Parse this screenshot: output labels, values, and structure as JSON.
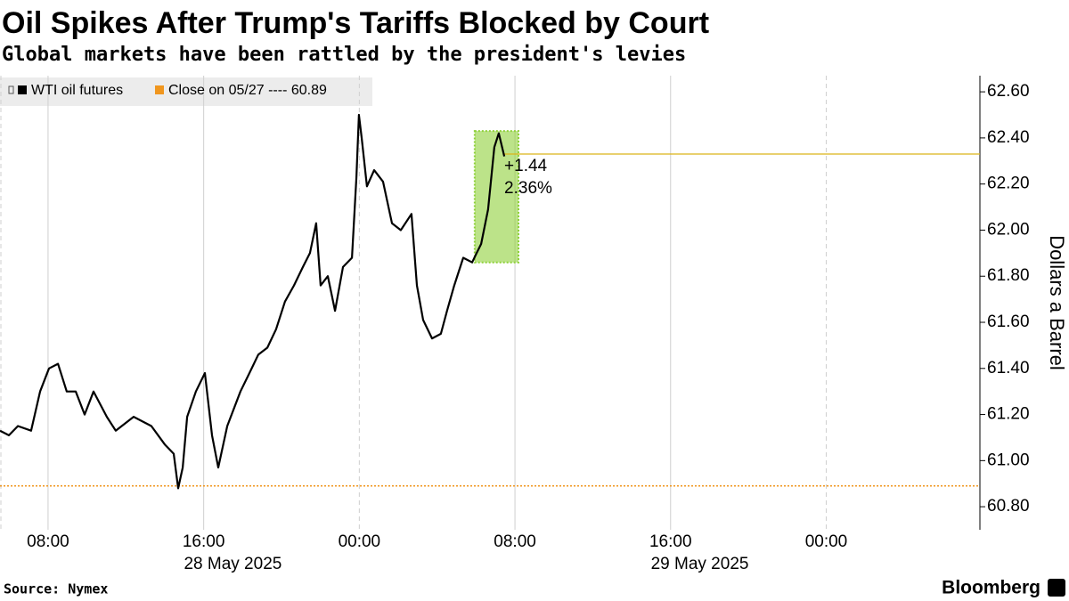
{
  "chart_data": {
    "type": "line",
    "title": "Oil Spikes After Trump's Tariffs Blocked by Court",
    "subtitle": "Global markets have been rattled by the president's levies",
    "y_label": "Dollars a Barrel",
    "source": "Source: Nymex",
    "brand": "Bloomberg",
    "x": [
      5.53,
      5.99,
      6.45,
      7.13,
      7.59,
      8.05,
      8.51,
      8.96,
      9.42,
      9.88,
      10.34,
      11.02,
      11.48,
      12.4,
      13.31,
      14.0,
      14.46,
      14.69,
      14.92,
      15.15,
      15.6,
      16.06,
      16.43,
      16.75,
      17.21,
      17.89,
      18.35,
      18.81,
      19.27,
      19.72,
      20.18,
      20.64,
      21.1,
      21.46,
      21.78,
      22.01,
      22.38,
      22.75,
      23.16,
      23.62,
      23.85,
      23.98,
      24.12,
      24.39,
      24.76,
      25.22,
      25.68,
      26.13,
      26.68,
      26.96,
      27.28,
      27.74,
      28.19,
      28.51,
      28.88,
      29.34,
      29.8,
      30.03,
      30.26,
      30.62,
      30.94,
      31.17,
      31.45
    ],
    "series": [
      {
        "name": "WTI oil futures",
        "color": "#000000",
        "values": [
          61.13,
          61.11,
          61.15,
          61.13,
          61.3,
          61.4,
          61.42,
          61.3,
          61.3,
          61.2,
          61.3,
          61.19,
          61.13,
          61.19,
          61.15,
          61.07,
          61.03,
          60.88,
          60.97,
          61.19,
          61.3,
          61.38,
          61.11,
          60.97,
          61.15,
          61.3,
          61.38,
          61.46,
          61.49,
          61.57,
          61.69,
          61.76,
          61.84,
          61.9,
          62.03,
          61.76,
          61.8,
          61.65,
          61.84,
          61.88,
          62.23,
          62.5,
          62.4,
          62.19,
          62.26,
          62.21,
          62.03,
          62.0,
          62.07,
          61.76,
          61.61,
          61.53,
          61.55,
          61.65,
          61.76,
          61.88,
          61.86,
          61.9,
          61.94,
          62.09,
          62.36,
          62.42,
          62.32
        ]
      }
    ],
    "reference_line": {
      "name": "Close on 05/27 ---- 60.89",
      "value": 60.89,
      "color": "#f0961e"
    },
    "last_price_line": {
      "value": 62.33,
      "color": "#dcb419"
    },
    "highlight": {
      "xlim": [
        29.93,
        32.18
      ],
      "ylim": [
        61.86,
        62.43
      ],
      "color": "#8fd13a"
    },
    "annotations": [
      "+1.44",
      "2.36%"
    ],
    "annotation_color": "#f0961e",
    "xlim": [
      5.53,
      55.9
    ],
    "ylim": [
      60.7,
      62.67
    ],
    "xticks": [
      {
        "value": 8,
        "label": "08:00"
      },
      {
        "value": 16,
        "label": "16:00"
      },
      {
        "value": 24,
        "label": "00:00"
      },
      {
        "value": 32,
        "label": "08:00"
      },
      {
        "value": 40,
        "label": "16:00"
      },
      {
        "value": 48,
        "label": "00:00"
      }
    ],
    "x_group_labels": [
      {
        "value": 17.5,
        "label": "28 May 2025"
      },
      {
        "value": 41.5,
        "label": "29 May 2025"
      }
    ],
    "yticks": [
      {
        "value": 60.8,
        "label": "60.80"
      },
      {
        "value": 61.0,
        "label": "61.00"
      },
      {
        "value": 61.2,
        "label": "61.20"
      },
      {
        "value": 61.4,
        "label": "61.40"
      },
      {
        "value": 61.6,
        "label": "61.60"
      },
      {
        "value": 61.8,
        "label": "61.80"
      },
      {
        "value": 62.0,
        "label": "62.00"
      },
      {
        "value": 62.2,
        "label": "62.20"
      },
      {
        "value": 62.4,
        "label": "62.40"
      },
      {
        "value": 62.6,
        "label": "62.60"
      }
    ],
    "grid": true
  }
}
